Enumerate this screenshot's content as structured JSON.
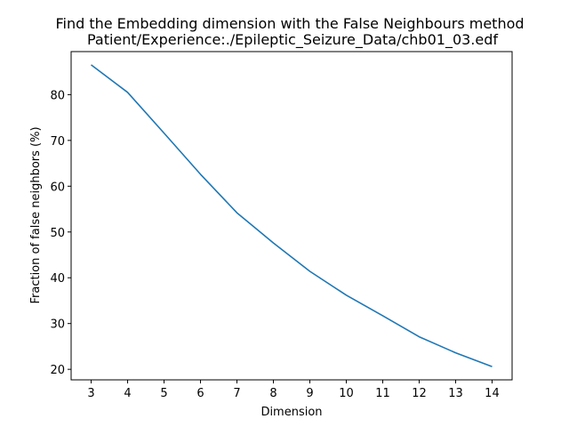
{
  "chart_data": {
    "type": "line",
    "title": "Find the Embedding dimension with the False Neighbours method",
    "subtitle": "Patient/Experience:./Epileptic_Seizure_Data/chb01_03.edf",
    "xlabel": "Dimension",
    "ylabel": "Fraction of false neighbors (%)",
    "x": [
      3,
      4,
      5,
      6,
      7,
      8,
      9,
      10,
      11,
      12,
      13,
      14
    ],
    "series": [
      {
        "values": [
          86.5,
          80.5,
          71.6,
          62.6,
          54.2,
          47.6,
          41.4,
          36.2,
          31.7,
          27.1,
          23.6,
          20.6
        ],
        "color": "#1f77b4"
      }
    ],
    "xlim": [
      2.45,
      14.55
    ],
    "ylim": [
      17.7,
      89.4
    ],
    "xticks": [
      "3",
      "4",
      "5",
      "6",
      "7",
      "8",
      "9",
      "10",
      "11",
      "12",
      "13",
      "14"
    ],
    "yticks": [
      "20",
      "30",
      "40",
      "50",
      "60",
      "70",
      "80"
    ],
    "grid": false,
    "legend": "none"
  }
}
